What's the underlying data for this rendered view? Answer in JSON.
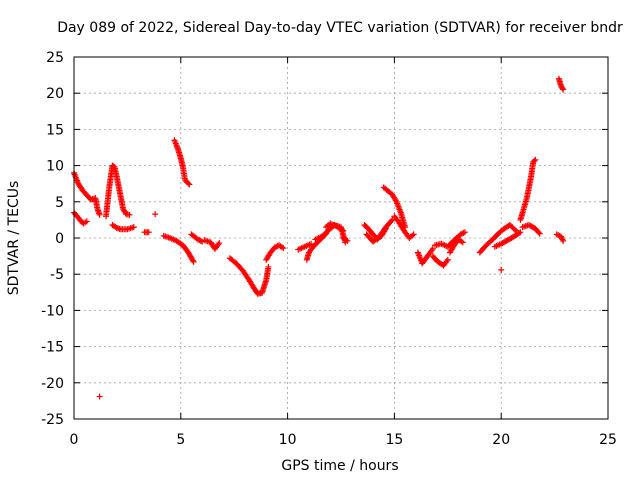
{
  "chart_data": {
    "type": "scatter",
    "title": "Day 089 of 2022, Sidereal Day-to-day VTEC variation (SDTVAR) for receiver bndr",
    "xlabel": "GPS time / hours",
    "ylabel": "SDTVAR / TECUs",
    "xlim": [
      0,
      25
    ],
    "ylim": [
      -25,
      25
    ],
    "xticks": [
      0,
      5,
      10,
      15,
      20,
      25
    ],
    "yticks": [
      25,
      20,
      15,
      10,
      5,
      0,
      -5,
      -10,
      -15,
      -20,
      -25
    ],
    "grid": true,
    "marker": "+",
    "color": "#ff0000",
    "segments": [
      {
        "x": [
          0.0,
          0.2,
          0.4,
          0.6,
          0.8,
          1.0,
          1.1,
          1.2
        ],
        "y": [
          9.0,
          7.5,
          6.6,
          5.9,
          5.3,
          5.5,
          4.0,
          3.2
        ]
      },
      {
        "x": [
          0.0,
          0.15,
          0.3,
          0.45,
          0.6
        ],
        "y": [
          3.5,
          3.0,
          2.4,
          2.0,
          2.3
        ]
      },
      {
        "x": [
          1.2
        ],
        "y": [
          -21.9
        ]
      },
      {
        "x": [
          1.5,
          1.65,
          1.8,
          1.9,
          2.0,
          2.1,
          2.2,
          2.3,
          2.45,
          2.6
        ],
        "y": [
          3.0,
          7.0,
          10.0,
          9.8,
          8.5,
          7.0,
          5.5,
          4.0,
          3.3,
          3.2
        ]
      },
      {
        "x": [
          1.8,
          2.0,
          2.2,
          2.5,
          2.8
        ],
        "y": [
          1.8,
          1.4,
          1.2,
          1.2,
          1.5
        ]
      },
      {
        "x": [
          3.3,
          3.5
        ],
        "y": [
          0.8,
          0.8
        ]
      },
      {
        "x": [
          3.8
        ],
        "y": [
          3.3
        ]
      },
      {
        "x": [
          4.2,
          4.5,
          4.8,
          5.1,
          5.35,
          5.6
        ],
        "y": [
          0.3,
          0.0,
          -0.4,
          -1.0,
          -2.0,
          -3.3
        ]
      },
      {
        "x": [
          4.7,
          4.8,
          4.9,
          5.0,
          5.1,
          5.2,
          5.4
        ],
        "y": [
          13.5,
          12.8,
          12.0,
          11.0,
          9.8,
          8.0,
          7.4
        ]
      },
      {
        "x": [
          5.5,
          5.8,
          6.0
        ],
        "y": [
          0.5,
          -0.2,
          -0.5
        ]
      },
      {
        "x": [
          6.1,
          6.4,
          6.6,
          6.8
        ],
        "y": [
          -0.3,
          -0.6,
          -1.5,
          -0.7
        ]
      },
      {
        "x": [
          7.3,
          7.6,
          7.9,
          8.2,
          8.4,
          8.6,
          8.8,
          9.0,
          9.1
        ],
        "y": [
          -2.8,
          -3.5,
          -4.5,
          -5.8,
          -6.8,
          -7.7,
          -7.6,
          -5.8,
          -4.0
        ]
      },
      {
        "x": [
          9.0,
          9.2,
          9.4,
          9.6,
          9.8
        ],
        "y": [
          -3.0,
          -2.0,
          -1.3,
          -1.0,
          -1.4
        ]
      },
      {
        "x": [
          10.5,
          10.8,
          11.1
        ],
        "y": [
          -1.6,
          -1.2,
          -0.8
        ]
      },
      {
        "x": [
          10.9,
          11.0,
          11.2,
          11.5,
          11.8
        ],
        "y": [
          -3.0,
          -2.0,
          -1.2,
          -0.3,
          0.6
        ]
      },
      {
        "x": [
          11.3,
          11.6,
          11.9,
          12.2,
          12.5,
          12.7
        ],
        "y": [
          -0.2,
          0.2,
          1.0,
          1.8,
          1.5,
          -0.6
        ]
      },
      {
        "x": [
          11.8,
          12.0,
          12.3,
          12.6
        ],
        "y": [
          1.5,
          2.0,
          1.6,
          1.0
        ]
      },
      {
        "x": [
          12.6,
          12.8
        ],
        "y": [
          0.0,
          -0.4
        ]
      },
      {
        "x": [
          13.6,
          13.8,
          14.0,
          14.2,
          14.4,
          14.6
        ],
        "y": [
          1.8,
          1.2,
          0.5,
          -0.2,
          0.3,
          1.3
        ]
      },
      {
        "x": [
          13.7,
          14.0,
          14.3,
          14.6,
          14.9
        ],
        "y": [
          0.5,
          -0.5,
          0.2,
          1.5,
          2.5
        ]
      },
      {
        "x": [
          14.5,
          14.7,
          14.9,
          15.1,
          15.3,
          15.5
        ],
        "y": [
          7.0,
          6.5,
          6.0,
          5.0,
          3.5,
          1.5
        ]
      },
      {
        "x": [
          15.0,
          15.2,
          15.5,
          15.7,
          15.9
        ],
        "y": [
          3.0,
          2.2,
          0.8,
          0.0,
          0.5
        ]
      },
      {
        "x": [
          16.1,
          16.3,
          16.6,
          16.8
        ],
        "y": [
          -2.0,
          -3.5,
          -2.3,
          -1.5
        ]
      },
      {
        "x": [
          16.8,
          17.0,
          17.3,
          17.5
        ],
        "y": [
          -2.5,
          -3.2,
          -3.8,
          -3.0
        ]
      },
      {
        "x": [
          16.9,
          17.2,
          17.5,
          17.8,
          18.1,
          18.3
        ],
        "y": [
          -1.0,
          -0.8,
          -1.2,
          -0.3,
          0.5,
          0.8
        ]
      },
      {
        "x": [
          17.6,
          17.8,
          18.0,
          18.2
        ],
        "y": [
          -2.0,
          -1.0,
          -0.2,
          -0.6
        ]
      },
      {
        "x": [
          19.0,
          19.3,
          19.6,
          19.9,
          20.1,
          20.4,
          20.7
        ],
        "y": [
          -2.0,
          -1.0,
          -0.2,
          0.7,
          1.2,
          1.8,
          1.0
        ]
      },
      {
        "x": [
          19.7,
          20.0,
          20.3,
          20.6,
          20.9
        ],
        "y": [
          -1.2,
          -0.8,
          -0.3,
          0.2,
          0.8
        ]
      },
      {
        "x": [
          20.0
        ],
        "y": [
          -4.4
        ]
      },
      {
        "x": [
          20.9,
          21.0,
          21.2,
          21.4,
          21.5,
          21.6
        ],
        "y": [
          2.5,
          3.5,
          5.5,
          8.5,
          10.5,
          10.8
        ]
      },
      {
        "x": [
          21.0,
          21.3,
          21.6,
          21.8
        ],
        "y": [
          1.5,
          1.8,
          1.3,
          0.6
        ]
      },
      {
        "x": [
          22.6,
          22.8,
          22.9
        ],
        "y": [
          0.5,
          0.2,
          -0.4
        ]
      },
      {
        "x": [
          22.7,
          22.8,
          22.9
        ],
        "y": [
          22.0,
          21.0,
          20.5
        ]
      }
    ]
  }
}
